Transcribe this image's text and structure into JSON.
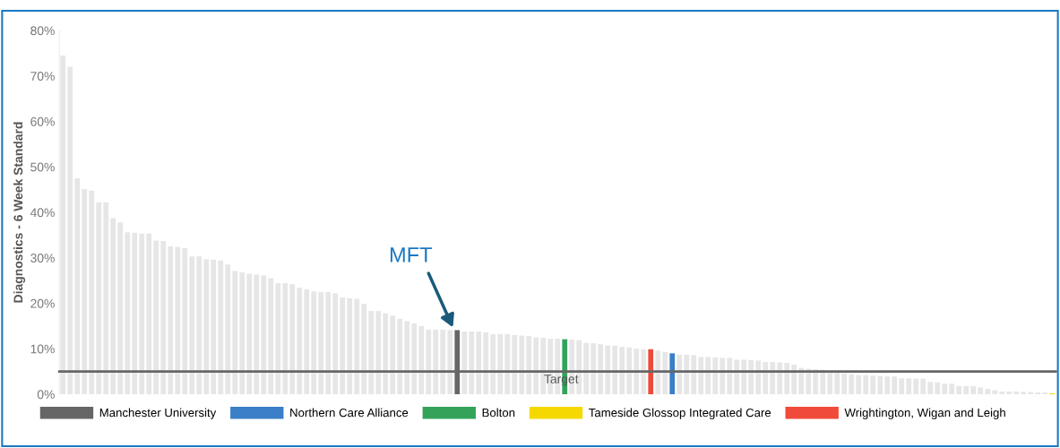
{
  "chart_data": {
    "type": "bar",
    "ylabel": "Diagnostics - 6 Week Standard",
    "categories": [
      null,
      null,
      null,
      null,
      null,
      null,
      null,
      null,
      null,
      null,
      null,
      null,
      null,
      null,
      null,
      null,
      null,
      null,
      null,
      null,
      null,
      null,
      null,
      null,
      null,
      null,
      null,
      null,
      null,
      null,
      null,
      null,
      null,
      null,
      null,
      null,
      null,
      null,
      null,
      null,
      null,
      null,
      null,
      null,
      null,
      null,
      null,
      null,
      null,
      null,
      null,
      null,
      null,
      null,
      null,
      null,
      null,
      null,
      null,
      null,
      null,
      null,
      null,
      null,
      null,
      null,
      null,
      null,
      null,
      null,
      null,
      null,
      null,
      null,
      null,
      null,
      null,
      null,
      null,
      null,
      null,
      null,
      null,
      null,
      null,
      null,
      null,
      null,
      null,
      null,
      null,
      null,
      null,
      null,
      null,
      null,
      null,
      null,
      null,
      null,
      null,
      null,
      null,
      null,
      null,
      null,
      null,
      null,
      null,
      null,
      null,
      null,
      null,
      null,
      null,
      null,
      null,
      null,
      null,
      null,
      null,
      null,
      null,
      null,
      null,
      null,
      null,
      null,
      null,
      null,
      null,
      null,
      null,
      null,
      null,
      null,
      null,
      null,
      null
    ],
    "series": [
      {
        "color": "#e6e6e6",
        "values": [
          74.5,
          72.0,
          47.5,
          45.1,
          44.8,
          42.2,
          42.2,
          38.7,
          37.8,
          35.6,
          35.5,
          35.3,
          35.3,
          33.8,
          33.7,
          32.5,
          32.4,
          32.1,
          30.3,
          30.3,
          29.7,
          29.6,
          29.4,
          28.5,
          27.1,
          26.8,
          26.5,
          26.3,
          26.1,
          25.5,
          24.4,
          24.4,
          24.2,
          23.4,
          23.1,
          22.6,
          22.5,
          22.5,
          22.2,
          21.3,
          21.1,
          21.0,
          19.9,
          18.3,
          18.3,
          17.8,
          17.3,
          16.6,
          16.1,
          15.6,
          15.0,
          14.2,
          14.2,
          14.2,
          14.1,
          null,
          13.8,
          13.8,
          13.8,
          13.6,
          13.2,
          13.2,
          13.2,
          13.0,
          12.9,
          12.8,
          12.5,
          12.4,
          12.2,
          12.2,
          null,
          12.0,
          11.9,
          11.3,
          11.2,
          11.0,
          10.7,
          10.7,
          10.4,
          10.3,
          10.0,
          9.9,
          null,
          9.6,
          9.3,
          null,
          8.7,
          8.7,
          8.6,
          8.2,
          8.2,
          8.1,
          8.0,
          8.0,
          7.6,
          7.6,
          7.5,
          7.4,
          7.1,
          7.1,
          7.0,
          6.9,
          6.5,
          5.8,
          5.6,
          5.5,
          5.4,
          4.7,
          4.7,
          4.6,
          4.4,
          4.2,
          4.2,
          4.1,
          4.0,
          3.9,
          3.9,
          3.5,
          3.5,
          3.4,
          3.4,
          2.7,
          2.6,
          2.3,
          2.3,
          1.8,
          1.8,
          1.8,
          1.5,
          1.2,
          0.9,
          0.6,
          0.6,
          0.6,
          0.5,
          0.5,
          0.4,
          0.4,
          null
        ]
      },
      {
        "name": "Manchester University",
        "color": "#666666",
        "values": [
          null,
          null,
          null,
          null,
          null,
          null,
          null,
          null,
          null,
          null,
          null,
          null,
          null,
          null,
          null,
          null,
          null,
          null,
          null,
          null,
          null,
          null,
          null,
          null,
          null,
          null,
          null,
          null,
          null,
          null,
          null,
          null,
          null,
          null,
          null,
          null,
          null,
          null,
          null,
          null,
          null,
          null,
          null,
          null,
          null,
          null,
          null,
          null,
          null,
          null,
          null,
          null,
          null,
          null,
          null,
          14.1,
          null,
          null,
          null,
          null,
          null,
          null,
          null,
          null,
          null,
          null,
          null,
          null,
          null,
          null,
          null,
          null,
          null,
          null,
          null,
          null,
          null,
          null,
          null,
          null,
          null,
          null,
          null,
          null,
          null,
          null,
          null,
          null,
          null,
          null,
          null,
          null,
          null,
          null,
          null,
          null,
          null,
          null,
          null,
          null,
          null,
          null,
          null,
          null,
          null,
          null,
          null,
          null,
          null,
          null,
          null,
          null,
          null,
          null,
          null,
          null,
          null,
          null,
          null,
          null,
          null,
          null,
          null,
          null,
          null,
          null,
          null,
          null,
          null,
          null,
          null,
          null,
          null,
          null,
          null,
          null,
          null,
          null,
          null
        ]
      },
      {
        "name": "Northern Care Alliance",
        "color": "#3a7fc8",
        "values": [
          null,
          null,
          null,
          null,
          null,
          null,
          null,
          null,
          null,
          null,
          null,
          null,
          null,
          null,
          null,
          null,
          null,
          null,
          null,
          null,
          null,
          null,
          null,
          null,
          null,
          null,
          null,
          null,
          null,
          null,
          null,
          null,
          null,
          null,
          null,
          null,
          null,
          null,
          null,
          null,
          null,
          null,
          null,
          null,
          null,
          null,
          null,
          null,
          null,
          null,
          null,
          null,
          null,
          null,
          null,
          null,
          null,
          null,
          null,
          null,
          null,
          null,
          null,
          null,
          null,
          null,
          null,
          null,
          null,
          null,
          null,
          null,
          null,
          null,
          null,
          null,
          null,
          null,
          null,
          null,
          null,
          null,
          null,
          null,
          null,
          9.0,
          null,
          null,
          null,
          null,
          null,
          null,
          null,
          null,
          null,
          null,
          null,
          null,
          null,
          null,
          null,
          null,
          null,
          null,
          null,
          null,
          null,
          null,
          null,
          null,
          null,
          null,
          null,
          null,
          null,
          null,
          null,
          null,
          null,
          null,
          null,
          null,
          null,
          null,
          null,
          null,
          null,
          null,
          null,
          null,
          null,
          null,
          null,
          null,
          null,
          null,
          null,
          null,
          null
        ]
      },
      {
        "name": "Bolton",
        "color": "#33a35a",
        "values": [
          null,
          null,
          null,
          null,
          null,
          null,
          null,
          null,
          null,
          null,
          null,
          null,
          null,
          null,
          null,
          null,
          null,
          null,
          null,
          null,
          null,
          null,
          null,
          null,
          null,
          null,
          null,
          null,
          null,
          null,
          null,
          null,
          null,
          null,
          null,
          null,
          null,
          null,
          null,
          null,
          null,
          null,
          null,
          null,
          null,
          null,
          null,
          null,
          null,
          null,
          null,
          null,
          null,
          null,
          null,
          null,
          null,
          null,
          null,
          null,
          null,
          null,
          null,
          null,
          null,
          null,
          null,
          null,
          null,
          null,
          12.1,
          null,
          null,
          null,
          null,
          null,
          null,
          null,
          null,
          null,
          null,
          null,
          null,
          null,
          null,
          null,
          null,
          null,
          null,
          null,
          null,
          null,
          null,
          null,
          null,
          null,
          null,
          null,
          null,
          null,
          null,
          null,
          null,
          null,
          null,
          null,
          null,
          null,
          null,
          null,
          null,
          null,
          null,
          null,
          null,
          null,
          null,
          null,
          null,
          null,
          null,
          null,
          null,
          null,
          null,
          null,
          null,
          null,
          null,
          null,
          null,
          null,
          null,
          null,
          null,
          null,
          null,
          null,
          null
        ]
      },
      {
        "name": "Tameside Glossop Integrated Care",
        "color": "#f5d800",
        "values": [
          null,
          null,
          null,
          null,
          null,
          null,
          null,
          null,
          null,
          null,
          null,
          null,
          null,
          null,
          null,
          null,
          null,
          null,
          null,
          null,
          null,
          null,
          null,
          null,
          null,
          null,
          null,
          null,
          null,
          null,
          null,
          null,
          null,
          null,
          null,
          null,
          null,
          null,
          null,
          null,
          null,
          null,
          null,
          null,
          null,
          null,
          null,
          null,
          null,
          null,
          null,
          null,
          null,
          null,
          null,
          null,
          null,
          null,
          null,
          null,
          null,
          null,
          null,
          null,
          null,
          null,
          null,
          null,
          null,
          null,
          null,
          null,
          null,
          null,
          null,
          null,
          null,
          null,
          null,
          null,
          null,
          null,
          null,
          null,
          null,
          null,
          null,
          null,
          null,
          null,
          null,
          null,
          null,
          null,
          null,
          null,
          null,
          null,
          null,
          null,
          null,
          null,
          null,
          null,
          null,
          null,
          null,
          null,
          null,
          null,
          null,
          null,
          null,
          null,
          null,
          null,
          null,
          null,
          null,
          null,
          null,
          null,
          null,
          null,
          null,
          null,
          null,
          null,
          null,
          null,
          null,
          null,
          null,
          null,
          null,
          null,
          null,
          null,
          0.2
        ]
      },
      {
        "name": "Wrightington, Wigan and Leigh",
        "color": "#f04a3a",
        "values": [
          null,
          null,
          null,
          null,
          null,
          null,
          null,
          null,
          null,
          null,
          null,
          null,
          null,
          null,
          null,
          null,
          null,
          null,
          null,
          null,
          null,
          null,
          null,
          null,
          null,
          null,
          null,
          null,
          null,
          null,
          null,
          null,
          null,
          null,
          null,
          null,
          null,
          null,
          null,
          null,
          null,
          null,
          null,
          null,
          null,
          null,
          null,
          null,
          null,
          null,
          null,
          null,
          null,
          null,
          null,
          null,
          null,
          null,
          null,
          null,
          null,
          null,
          null,
          null,
          null,
          null,
          null,
          null,
          null,
          null,
          null,
          null,
          null,
          null,
          null,
          null,
          null,
          null,
          null,
          null,
          null,
          null,
          9.9,
          null,
          null,
          null,
          null,
          null,
          null,
          null,
          null,
          null,
          null,
          null,
          null,
          null,
          null,
          null,
          null,
          null,
          null,
          null,
          null,
          null,
          null,
          null,
          null,
          null,
          null,
          null,
          null,
          null,
          null,
          null,
          null,
          null,
          null,
          null,
          null,
          null,
          null,
          null,
          null,
          null,
          null,
          null,
          null,
          null,
          null,
          null,
          null,
          null,
          null,
          null,
          null,
          null,
          null,
          null,
          null
        ]
      }
    ],
    "ylim": [
      0,
      80
    ],
    "yticks": [
      {
        "value": 0,
        "label": "0%"
      },
      {
        "value": 10,
        "label": "10%"
      },
      {
        "value": 20,
        "label": "20%"
      },
      {
        "value": 30,
        "label": "30%"
      },
      {
        "value": 40,
        "label": "40%"
      },
      {
        "value": 50,
        "label": "50%"
      },
      {
        "value": 60,
        "label": "60%"
      },
      {
        "value": 70,
        "label": "70%"
      },
      {
        "value": 80,
        "label": "80%"
      }
    ],
    "ref_lines": [
      {
        "axis": "y",
        "value": 5,
        "label": "Target",
        "color": "#666666"
      }
    ],
    "annotations": [
      "MFT"
    ],
    "grid": false,
    "legend": "bottom"
  }
}
